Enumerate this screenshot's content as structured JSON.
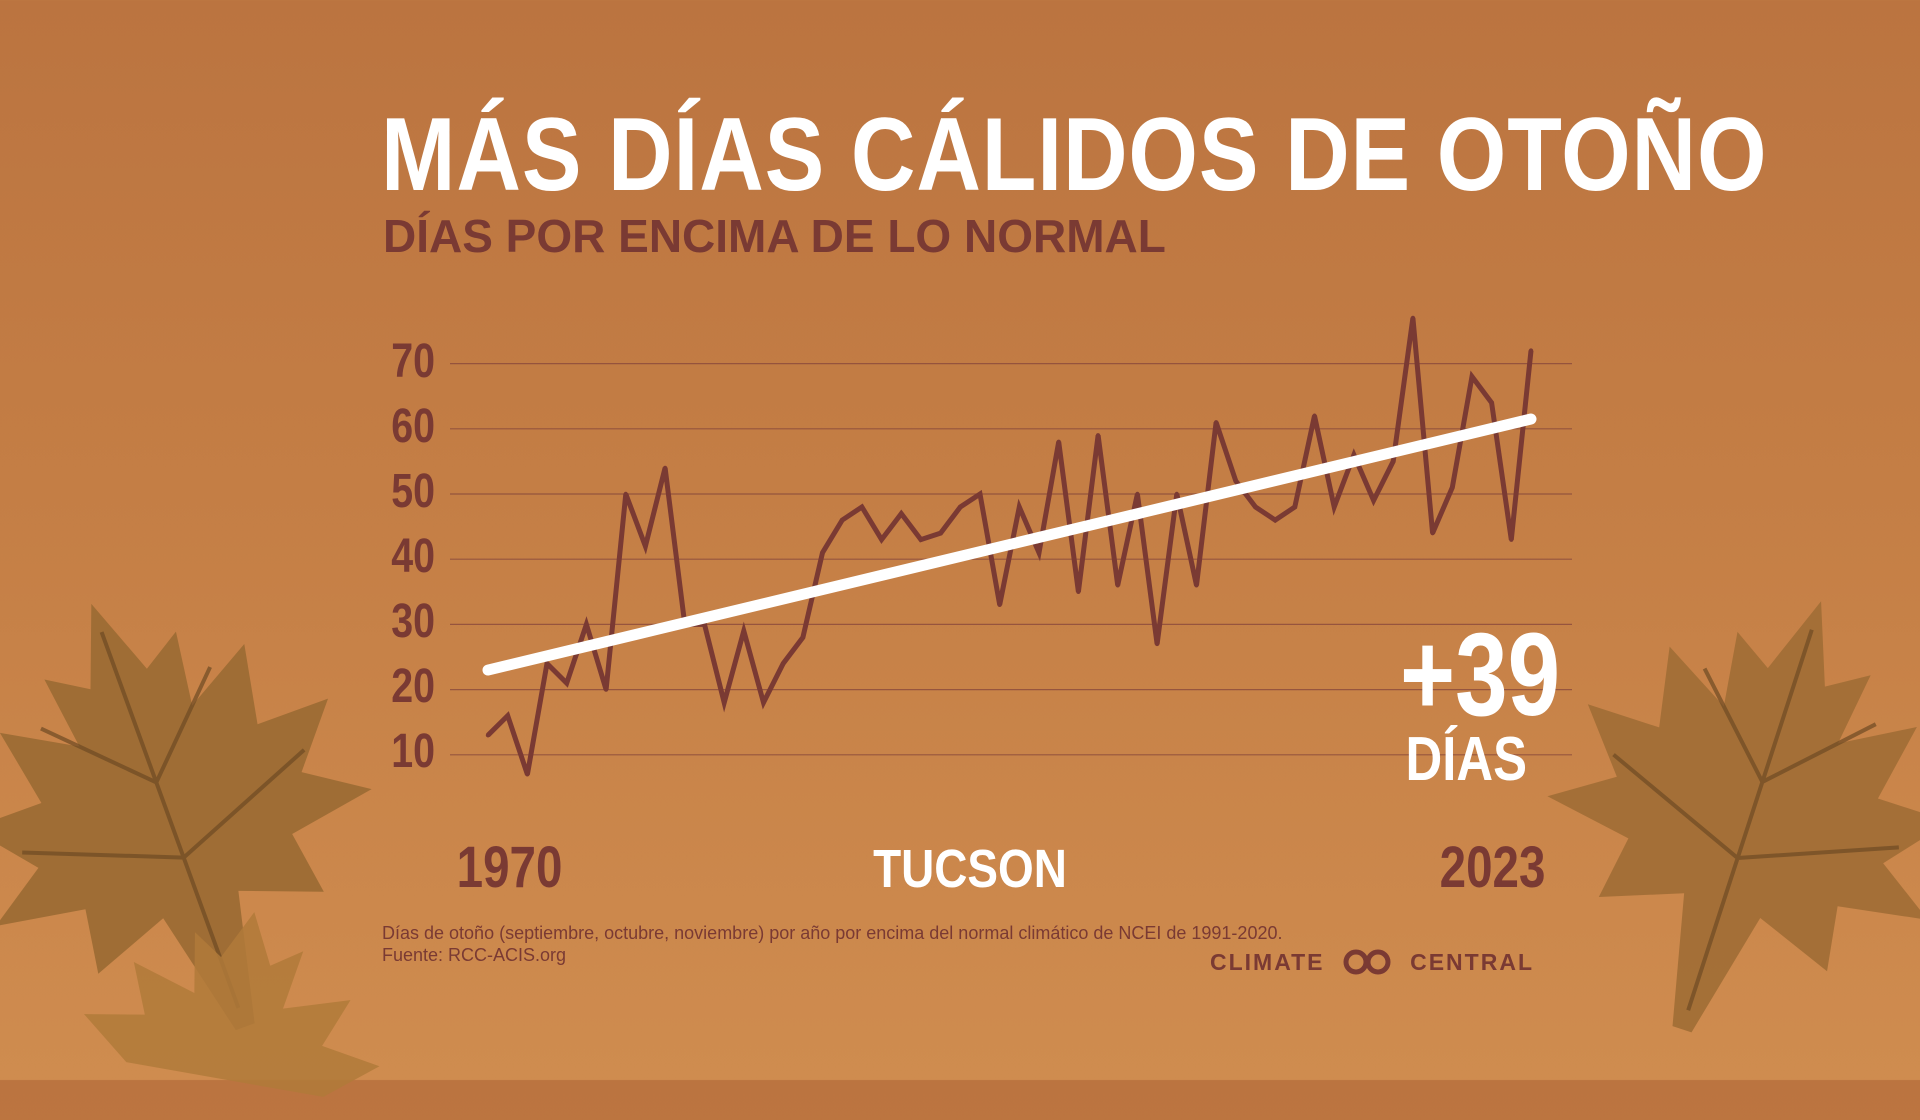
{
  "header": {
    "title": "MÁS DÍAS CÁLIDOS DE OTOÑO",
    "subtitle": "DÍAS POR ENCIMA DE LO NORMAL"
  },
  "labels": {
    "start_year": "1970",
    "end_year": "2023",
    "city": "TUCSON",
    "callout_value": "+39",
    "callout_unit": "DÍAS"
  },
  "footer": {
    "note": "Días de otoño (septiembre, octubre, noviembre) por año por encima del normal climático de NCEI de 1991-2020.",
    "source": "Fuente: RCC-ACIS.org",
    "brand_left": "CLIMATE",
    "brand_right": "CENTRAL",
    "brand_logo_icon": "climate-central-logo-icon"
  },
  "colors": {
    "background_top": "#bb7440",
    "background_bottom": "#cf8c4f",
    "series": "#7a3a33",
    "trend": "#ffffff",
    "text_dark": "#7a3a33",
    "gridline": "#8a4a3c"
  },
  "chart_data": {
    "type": "line",
    "x_range": [
      1970,
      2023
    ],
    "ylim": [
      0,
      77
    ],
    "yticks": [
      "10",
      "20",
      "30",
      "40",
      "50",
      "60",
      "70"
    ],
    "grid": true,
    "series": [
      {
        "x": [
          1970,
          1971,
          1972,
          1973,
          1974,
          1975,
          1976,
          1977,
          1978,
          1979,
          1980,
          1981,
          1982,
          1983,
          1984,
          1985,
          1986,
          1987,
          1988,
          1989,
          1990,
          1991,
          1992,
          1993,
          1994,
          1995,
          1996,
          1997,
          1998,
          1999,
          2000,
          2001,
          2002,
          2003,
          2004,
          2005,
          2006,
          2007,
          2008,
          2009,
          2010,
          2011,
          2012,
          2013,
          2014,
          2015,
          2016,
          2017,
          2018,
          2019,
          2020,
          2021,
          2022,
          2023
        ],
        "values": [
          13,
          16,
          7,
          24,
          21,
          30,
          20,
          50,
          42,
          54,
          30,
          30,
          18,
          29,
          18,
          24,
          28,
          41,
          46,
          48,
          43,
          47,
          43,
          44,
          48,
          50,
          33,
          48,
          41,
          58,
          35,
          59,
          36,
          50,
          27,
          50,
          36,
          61,
          52,
          48,
          46,
          48,
          62,
          48,
          56,
          49,
          55,
          77,
          44,
          51,
          68,
          64,
          43,
          72
        ]
      }
    ],
    "trend": {
      "x": [
        1970,
        2023
      ],
      "values": [
        23,
        61.5
      ]
    }
  }
}
